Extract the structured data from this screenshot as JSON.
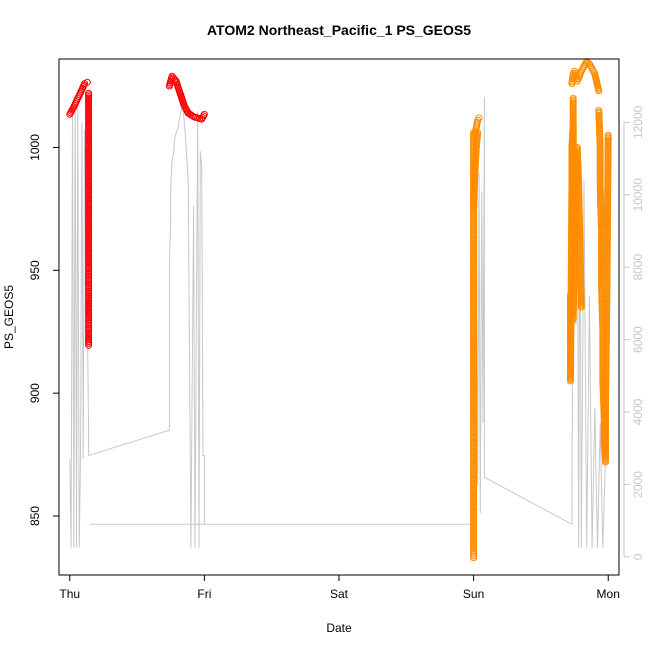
{
  "chart_data": {
    "type": "scatter",
    "title": "ATOM2 Northeast_Pacific_1 PS_GEOS5",
    "xlabel": "Date",
    "ylabel": "PS_GEOS5",
    "x_ticks": [
      "Thu",
      "Fri",
      "Sat",
      "Sun",
      "Mon"
    ],
    "xlim": [
      -0.08,
      4.08
    ],
    "ylim": [
      826,
      1036
    ],
    "y_ticks": [
      850,
      900,
      950,
      1000
    ],
    "y2lim": [
      -500,
      13750
    ],
    "y2_ticks": [
      0,
      2000,
      4000,
      6000,
      8000,
      10000,
      12000
    ],
    "colors": {
      "early_series": "#ff0000",
      "late_series": "#ff8c00",
      "altitude_line": "#c8c8c8"
    },
    "series": [
      {
        "color": "#ff0000",
        "marker": "open-circle",
        "segments": [
          {
            "x": [
              0.0,
              0.03,
              0.06,
              0.09,
              0.11,
              0.13
            ],
            "y": [
              1013.5,
              1016.5,
              1020,
              1023.5,
              1026,
              1026.5
            ]
          },
          {
            "x": [
              0.14,
              0.14,
              0.14,
              0.14,
              0.14,
              0.14,
              0.14,
              0.14,
              0.14,
              0.14,
              0.14,
              0.14,
              0.14,
              0.14
            ],
            "y": [
              1022,
              1012,
              1002,
              992,
              982,
              972,
              962,
              952,
              945,
              938,
              930,
              925,
              921,
              919.5
            ]
          },
          {
            "x": [
              0.74,
              0.76,
              0.79,
              0.82,
              0.85,
              0.88,
              0.92,
              0.95,
              0.98,
              1.0
            ],
            "y": [
              1025,
              1029,
              1027,
              1022,
              1017,
              1014,
              1012.5,
              1012,
              1011.5,
              1013.5
            ]
          }
        ]
      },
      {
        "color": "#ff8c00",
        "marker": "open-circle",
        "segments": [
          {
            "x": [
              3.0,
              3.0,
              3.0,
              3.0,
              3.0,
              3.0,
              3.0,
              3.0,
              3.0,
              3.0,
              3.0,
              3.0,
              3.0,
              3.0,
              3.0,
              3.0
            ],
            "y": [
              1006,
              995,
              985,
              975,
              962,
              945,
              930,
              915,
              900,
              888,
              875,
              862,
              850,
              840,
              836,
              833
            ]
          },
          {
            "x": [
              3.01,
              3.02,
              3.03,
              3.04
            ],
            "y": [
              1005,
              1008,
              1011,
              1012
            ]
          },
          {
            "x": [
              3.0,
              3.01,
              3.02,
              3.03
            ],
            "y": [
              975,
              990,
              1000,
              1006
            ]
          },
          {
            "x": [
              3.73,
              3.74,
              3.75,
              3.76,
              3.77,
              3.78,
              3.8,
              3.82,
              3.84,
              3.86,
              3.88,
              3.9,
              3.93
            ],
            "y": [
              1026,
              1030,
              1031,
              1029.5,
              1027,
              1028,
              1031,
              1033,
              1035,
              1034,
              1032,
              1030,
              1023
            ]
          },
          {
            "x": [
              3.72,
              3.72,
              3.72,
              3.73,
              3.73,
              3.74,
              3.74,
              3.74
            ],
            "y": [
              940,
              925,
              905,
              985,
              1000,
              1010,
              960,
              1020
            ]
          },
          {
            "x": [
              3.74,
              3.75,
              3.76,
              3.77,
              3.78,
              3.79,
              3.8
            ],
            "y": [
              930,
              960,
              990,
              1000,
              985,
              960,
              935
            ]
          },
          {
            "x": [
              3.93,
              3.94,
              3.94,
              3.95,
              3.95,
              3.96,
              3.96,
              3.97,
              3.97,
              3.98,
              3.98,
              3.99,
              4.0
            ],
            "y": [
              1015,
              1000,
              985,
              965,
              945,
              925,
              905,
              890,
              880,
              872,
              895,
              940,
              1005
            ]
          }
        ]
      },
      {
        "color": "#c8c8c8",
        "marker": "line",
        "axis": "right",
        "x": [
          0.0,
          0.01,
          0.02,
          0.03,
          0.04,
          0.05,
          0.06,
          0.07,
          0.08,
          0.09,
          0.1,
          0.11,
          0.12,
          0.14,
          0.14,
          0.74,
          0.74,
          0.75,
          0.75,
          0.76,
          0.77,
          0.78,
          0.8,
          0.82,
          0.84,
          0.86,
          0.88,
          0.9,
          0.92,
          0.93,
          0.95,
          0.96,
          0.97,
          0.98,
          0.99,
          1.0,
          1.0,
          0.15,
          3.0,
          3.01,
          3.02,
          3.03,
          3.04,
          3.05,
          3.06,
          3.07,
          3.08,
          3.08,
          3.73,
          3.74,
          3.75,
          3.76,
          3.77,
          3.78,
          3.79,
          3.8,
          3.82,
          3.84,
          3.86,
          3.88,
          3.9,
          3.92,
          3.94,
          3.96,
          3.98,
          4.0
        ],
        "y": [
          2700,
          250,
          12500,
          250,
          12700,
          250,
          12600,
          250,
          2700,
          12000,
          2700,
          11800,
          10000,
          3500,
          2800,
          3500,
          8100,
          9300,
          10200,
          11000,
          11100,
          11600,
          11800,
          12200,
          12500,
          11600,
          10400,
          250,
          9700,
          250,
          12300,
          250,
          11200,
          10800,
          2800,
          2800,
          900,
          900,
          900,
          12000,
          8700,
          2000,
          10600,
          1200,
          10100,
          3700,
          12700,
          2200,
          900,
          11200,
          12000,
          6400,
          10800,
          250,
          11000,
          250,
          10400,
          250,
          7200,
          250,
          4100,
          250,
          3700,
          250,
          2800,
          11200
        ]
      }
    ]
  }
}
